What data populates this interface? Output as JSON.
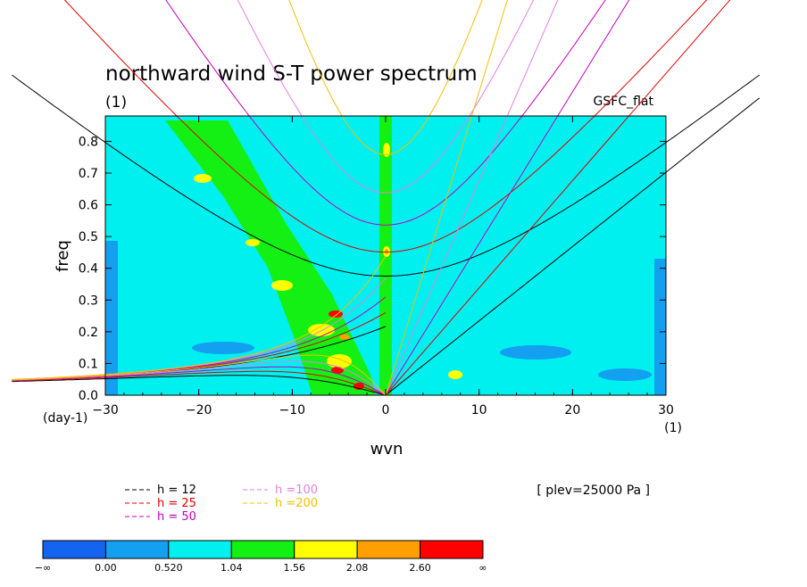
{
  "chart_data": {
    "type": "heatmap",
    "title": "northward wind S-T power spectrum",
    "subtitle": "(1)",
    "source_label": "GSFC_flat",
    "xlabel": "wvn",
    "ylabel": "freq",
    "x_unit": "(1)",
    "y_unit": "(day-1)",
    "xlim": [
      -30,
      30
    ],
    "ylim": [
      0,
      0.88
    ],
    "xticks": [
      "−30",
      "−20",
      "−10",
      "0",
      "10",
      "20",
      "30"
    ],
    "yticks": [
      "0.0",
      "0.1",
      "0.2",
      "0.3",
      "0.4",
      "0.5",
      "0.6",
      "0.7",
      "0.8"
    ],
    "annotation": "[ plev=25000 Pa ]",
    "dispersion_legend": [
      {
        "label": "h = 12",
        "color": "#000000"
      },
      {
        "label": "h = 25",
        "color": "#e00000"
      },
      {
        "label": "h = 50",
        "color": "#c000c0"
      },
      {
        "label": "h =100",
        "color": "#e080e0"
      },
      {
        "label": "h =200",
        "color": "#f0c000"
      }
    ],
    "colorbar": {
      "colors": [
        "#1464f0",
        "#14a0f0",
        "#00f0f0",
        "#14f014",
        "#ffff00",
        "#ffa000",
        "#ff0000"
      ],
      "tick_labels": [
        "−∞",
        "0.00",
        "0.520",
        "1.04",
        "1.56",
        "2.08",
        "2.60",
        "∞"
      ]
    }
  }
}
